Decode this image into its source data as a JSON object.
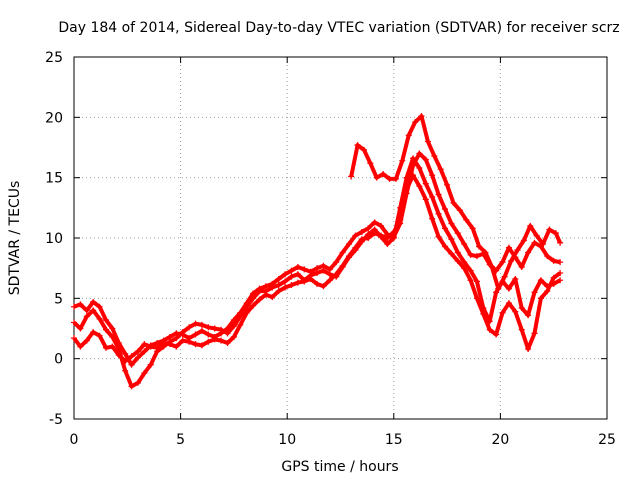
{
  "chart_data": {
    "type": "scatter",
    "title": "Day 184 of 2014, Sidereal Day-to-day VTEC variation (SDTVAR) for receiver scrz",
    "xlabel": "GPS time / hours",
    "ylabel": "SDTVAR / TECUs",
    "xlim": [
      0,
      25
    ],
    "ylim": [
      -5,
      25
    ],
    "xticks": [
      0,
      5,
      10,
      15,
      20,
      25
    ],
    "yticks": [
      -5,
      0,
      5,
      10,
      15,
      20,
      25
    ],
    "grid": true,
    "marker": "+",
    "color": "#ff0000",
    "series": [
      {
        "x": [
          0.0,
          0.3,
          0.6,
          0.9,
          1.2,
          1.5,
          1.8,
          2.1,
          2.4,
          2.7,
          3.0,
          3.3,
          3.6,
          3.9,
          4.2,
          4.5,
          4.8,
          5.1,
          5.4,
          5.7,
          6.0,
          6.3,
          6.6,
          6.9,
          7.2,
          7.5,
          7.8,
          8.1,
          8.4,
          8.7,
          9.0,
          9.3,
          9.6,
          9.9,
          10.2,
          10.5,
          10.8,
          11.1,
          11.4,
          11.7,
          12.0,
          12.3,
          12.6,
          12.9,
          13.2,
          13.5,
          13.8,
          14.1,
          14.4,
          14.7,
          15.0,
          15.3,
          15.6,
          15.9,
          16.2,
          16.5,
          16.8,
          17.1,
          17.4,
          17.7,
          18.0,
          18.3,
          18.6,
          18.9,
          19.2,
          19.5,
          19.8,
          20.1,
          20.4,
          20.7,
          21.0,
          21.3,
          21.6,
          21.9,
          22.2,
          22.5,
          22.8
        ],
        "y": [
          4.3,
          4.5,
          4.0,
          4.7,
          4.3,
          3.2,
          2.5,
          1.3,
          0.4,
          -0.5,
          0.1,
          0.6,
          1.1,
          1.3,
          1.5,
          1.8,
          2.1,
          2.0,
          1.7,
          2.0,
          2.3,
          2.0,
          1.8,
          2.1,
          2.5,
          3.2,
          3.8,
          4.6,
          5.4,
          5.8,
          6.0,
          6.2,
          6.6,
          7.0,
          7.3,
          7.6,
          7.4,
          7.2,
          7.5,
          7.7,
          7.4,
          8.0,
          8.8,
          9.5,
          10.2,
          10.5,
          10.8,
          11.3,
          11.0,
          10.3,
          10.1,
          11.2,
          13.7,
          16.0,
          17.0,
          16.5,
          15.2,
          13.6,
          12.4,
          11.2,
          10.4,
          9.5,
          8.6,
          8.5,
          8.7,
          7.8,
          7.3,
          8.0,
          9.2,
          8.4,
          7.6,
          8.8,
          9.6,
          9.3,
          8.5,
          8.1,
          8.0
        ]
      },
      {
        "x": [
          0.0,
          0.3,
          0.6,
          0.9,
          1.2,
          1.5,
          1.8,
          2.1,
          2.4,
          2.7,
          3.0,
          3.3,
          3.6,
          3.9,
          4.2,
          4.5,
          4.8,
          5.1,
          5.4,
          5.7,
          6.0,
          6.3,
          6.6,
          6.9,
          7.2,
          7.5,
          7.8,
          8.1,
          8.4,
          8.7,
          9.0,
          9.3,
          9.6,
          9.9,
          10.2,
          10.5,
          10.8,
          11.1,
          11.4,
          11.7,
          12.0,
          12.3,
          12.6,
          12.9,
          13.2,
          13.5,
          13.8,
          14.1,
          14.4,
          14.7,
          15.0,
          15.3,
          15.6,
          15.9,
          16.2,
          16.5,
          16.8,
          17.1,
          17.4,
          17.7,
          18.0,
          18.3,
          18.6,
          18.9,
          19.2,
          19.5,
          19.8,
          20.1,
          20.4,
          20.7,
          21.0,
          21.3,
          21.6,
          21.9,
          22.2,
          22.5,
          22.8
        ],
        "y": [
          3.0,
          2.5,
          3.5,
          4.0,
          3.3,
          2.4,
          1.8,
          0.8,
          -1.0,
          -2.3,
          -2.0,
          -1.2,
          -0.5,
          0.6,
          1.0,
          1.4,
          1.7,
          2.2,
          2.6,
          2.9,
          2.8,
          2.6,
          2.5,
          2.4,
          2.1,
          2.7,
          3.5,
          4.3,
          5.0,
          5.6,
          5.6,
          5.9,
          6.1,
          6.4,
          6.8,
          7.0,
          6.5,
          6.9,
          7.1,
          7.3,
          7.0,
          6.8,
          7.6,
          8.4,
          9.0,
          9.7,
          10.3,
          10.7,
          10.1,
          9.5,
          10.0,
          12.5,
          15.0,
          16.6,
          15.8,
          14.5,
          13.4,
          12.0,
          10.8,
          9.9,
          8.8,
          8.0,
          7.3,
          6.4,
          4.2,
          3.1,
          5.5,
          6.4,
          5.8,
          6.6,
          4.2,
          3.6,
          5.5,
          6.5,
          6.0,
          6.2,
          6.5
        ]
      },
      {
        "x": [
          0.0,
          0.3,
          0.6,
          0.9,
          1.2,
          1.5,
          1.8,
          2.1,
          2.4,
          2.7,
          3.0,
          3.3,
          3.6,
          3.9,
          4.2,
          4.5,
          4.8,
          5.1,
          5.4,
          5.7,
          6.0,
          6.3,
          6.6,
          6.9,
          7.2,
          7.5,
          7.8,
          8.1,
          8.4,
          8.7,
          9.0,
          9.3,
          9.6,
          9.9,
          10.2,
          10.5,
          10.8,
          11.1,
          11.4,
          11.7,
          12.0,
          12.3,
          12.6,
          12.9,
          13.2,
          13.5,
          13.8,
          14.1,
          14.4,
          14.7,
          15.0,
          15.3,
          15.6,
          15.9,
          16.2,
          16.5,
          16.8,
          17.1,
          17.4,
          17.7,
          18.0,
          18.3,
          18.6,
          18.9,
          19.2,
          19.5,
          19.8,
          20.1,
          20.4,
          20.7,
          21.0,
          21.3,
          21.6,
          21.9,
          22.2,
          22.5,
          22.8
        ],
        "y": [
          1.7,
          1.0,
          1.5,
          2.2,
          1.9,
          0.9,
          1.0,
          0.3,
          -0.2,
          0.2,
          0.6,
          1.2,
          1.0,
          0.9,
          1.3,
          1.2,
          1.0,
          1.5,
          1.4,
          1.2,
          1.1,
          1.4,
          1.6,
          1.5,
          1.3,
          1.8,
          2.8,
          3.8,
          4.4,
          4.9,
          5.3,
          5.1,
          5.6,
          5.9,
          6.1,
          6.3,
          6.4,
          6.6,
          6.2,
          6.0,
          6.5,
          7.0,
          7.7,
          8.5,
          9.2,
          9.9,
          10.0,
          10.4,
          10.2,
          10.0,
          10.5,
          11.5,
          14.0,
          15.2,
          14.3,
          13.2,
          11.6,
          10.1,
          9.3,
          8.7,
          8.1,
          7.5,
          6.5,
          5.0,
          3.7,
          2.4,
          2.0,
          3.8,
          4.6,
          3.9,
          2.4,
          0.8,
          2.1,
          5.0,
          5.6,
          6.7,
          7.1
        ]
      },
      {
        "x": [
          13.0,
          13.3,
          13.6,
          13.9,
          14.2,
          14.5,
          14.8,
          15.1,
          15.4,
          15.7,
          16.0,
          16.3,
          16.6,
          16.9,
          17.2,
          17.5,
          17.8,
          18.1,
          18.4,
          18.7,
          19.0,
          19.3,
          19.6,
          19.9,
          20.2,
          20.5,
          20.8,
          21.1,
          21.4,
          21.7,
          22.0,
          22.3,
          22.6,
          22.8
        ],
        "y": [
          15.1,
          17.7,
          17.3,
          16.2,
          15.0,
          15.3,
          14.9,
          14.9,
          16.4,
          18.5,
          19.6,
          20.1,
          18.0,
          16.8,
          15.7,
          14.4,
          12.9,
          12.3,
          11.5,
          10.8,
          9.3,
          8.8,
          7.6,
          5.8,
          6.8,
          8.1,
          9.0,
          9.8,
          11.0,
          10.2,
          9.5,
          10.7,
          10.4,
          9.6
        ]
      }
    ]
  }
}
